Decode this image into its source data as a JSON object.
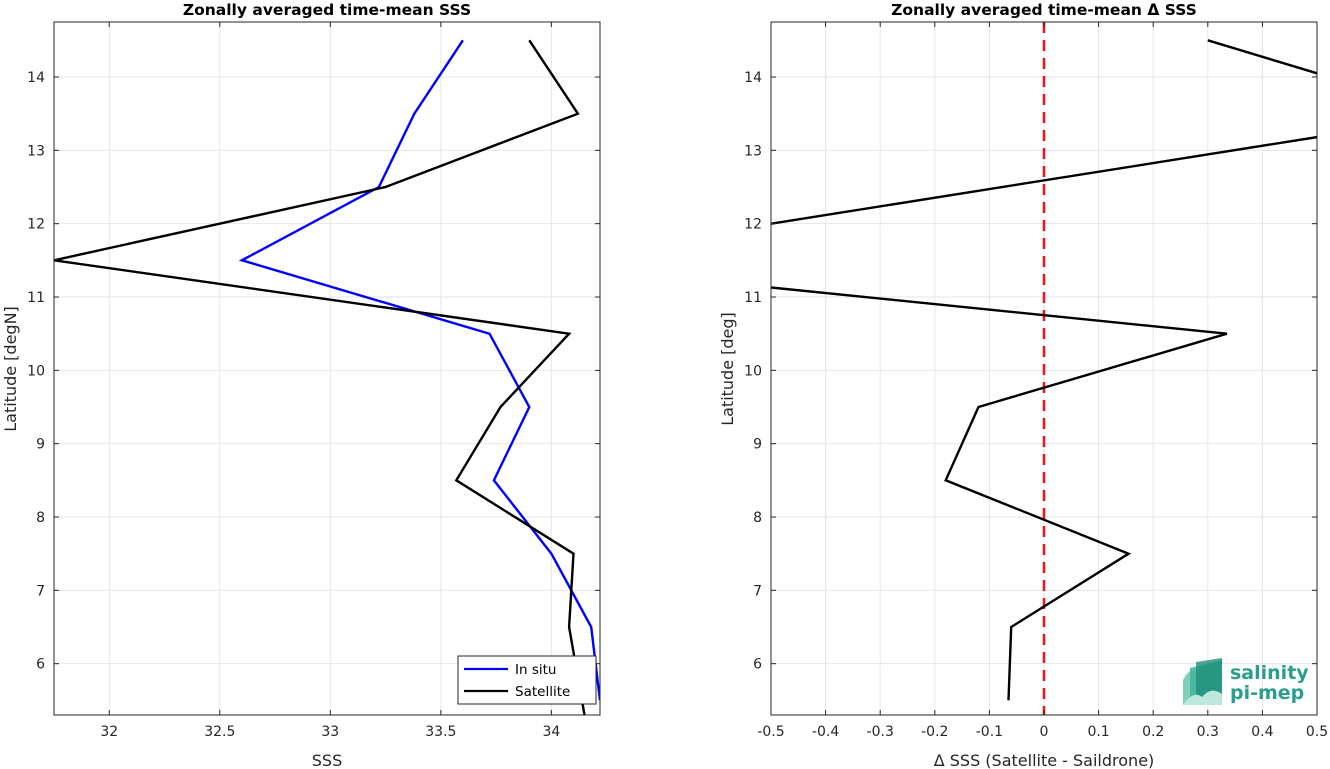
{
  "chart_data": [
    {
      "type": "line",
      "title": "Zonally averaged time-mean SSS",
      "xlabel": "SSS",
      "ylabel": "Latitude [degN]",
      "xlim": [
        31.75,
        34.22
      ],
      "ylim": [
        5.3,
        14.75
      ],
      "xticks": [
        32,
        32.5,
        33,
        33.5,
        34
      ],
      "xticklabels": [
        "32",
        "32.5",
        "33",
        "33.5",
        "34"
      ],
      "yticks": [
        6,
        7,
        8,
        9,
        10,
        11,
        12,
        13,
        14
      ],
      "yticklabels": [
        "6",
        "7",
        "8",
        "9",
        "10",
        "11",
        "12",
        "13",
        "14"
      ],
      "grid": true,
      "legend_position": "bottom-right",
      "series": [
        {
          "name": "In situ",
          "color": "#0000ff",
          "x": [
            34.22,
            34.18,
            34.0,
            33.74,
            33.9,
            33.72,
            32.6,
            33.22,
            33.38,
            33.6
          ],
          "y": [
            5.5,
            6.5,
            7.5,
            8.5,
            9.5,
            10.5,
            11.5,
            12.5,
            13.5,
            14.5
          ]
        },
        {
          "name": "Satellite",
          "color": "#000000",
          "x": [
            34.15,
            34.08,
            34.1,
            33.57,
            33.77,
            34.08,
            31.75,
            33.25,
            34.12,
            33.9
          ],
          "y": [
            5.3,
            6.5,
            7.5,
            8.5,
            9.5,
            10.5,
            11.5,
            12.5,
            13.5,
            14.5
          ]
        }
      ]
    },
    {
      "type": "line",
      "title": "Zonally averaged time-mean Δ SSS",
      "xlabel": "Δ SSS (Satellite - Saildrone)",
      "ylabel": "Latitude [deg]",
      "xlim": [
        -0.5,
        0.5
      ],
      "ylim": [
        5.3,
        14.75
      ],
      "xticks": [
        -0.5,
        -0.4,
        -0.3,
        -0.2,
        -0.1,
        0,
        0.1,
        0.2,
        0.3,
        0.4,
        0.5
      ],
      "xticklabels": [
        "-0.5",
        "-0.4",
        "-0.3",
        "-0.2",
        "-0.1",
        "0",
        "0.1",
        "0.2",
        "0.3",
        "0.4",
        "0.5"
      ],
      "yticks": [
        6,
        7,
        8,
        9,
        10,
        11,
        12,
        13,
        14
      ],
      "yticklabels": [
        "6",
        "7",
        "8",
        "9",
        "10",
        "11",
        "12",
        "13",
        "14"
      ],
      "grid": true,
      "reference_line": {
        "x": 0,
        "color": "#e8191c",
        "style": "dashed"
      },
      "series": [
        {
          "color": "#000000",
          "segments": [
            {
              "x": [
                -0.065,
                -0.06,
                0.155,
                -0.18,
                -0.12,
                0.335,
                -0.5
              ],
              "y": [
                5.5,
                6.5,
                7.5,
                8.5,
                9.5,
                10.5,
                11.13
              ]
            },
            {
              "x": [
                -0.5,
                0.5
              ],
              "y": [
                12.0,
                13.18
              ]
            },
            {
              "x": [
                0.3,
                0.5
              ],
              "y": [
                14.5,
                14.05
              ]
            }
          ]
        }
      ]
    }
  ],
  "logo": {
    "line1": "salinity",
    "line2": "pi-mep",
    "color": "#2a9d8f"
  }
}
